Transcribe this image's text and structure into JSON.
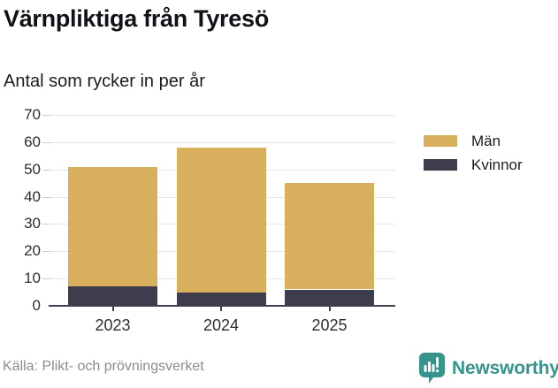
{
  "header": {
    "title": "Värnpliktiga från Tyresö",
    "subtitle": "Antal som rycker in per år"
  },
  "chart_data": {
    "type": "bar",
    "stacked": true,
    "title": "Värnpliktiga från Tyresö",
    "subtitle": "Antal som rycker in per år",
    "categories": [
      "2023",
      "2024",
      "2025"
    ],
    "series": [
      {
        "name": "Män",
        "color": "#d8af5c",
        "values": [
          44,
          53,
          39
        ]
      },
      {
        "name": "Kvinnor",
        "color": "#3e3d4d",
        "values": [
          7,
          5,
          6
        ]
      }
    ],
    "stack_totals": [
      51,
      58,
      45
    ],
    "xlabel": "",
    "ylabel": "",
    "ylim": [
      0,
      70
    ],
    "yticks": [
      0,
      10,
      20,
      30,
      40,
      50,
      60,
      70
    ],
    "grid": "horizontal",
    "legend_position": "right"
  },
  "footer": {
    "source": "Källa: Plikt- och prövningsverket",
    "brand": "Newsworthy",
    "brand_icon": "newsworthy-speech-bubble-bar-chart-icon"
  },
  "colors": {
    "men": "#d8af5c",
    "women": "#3e3d4d",
    "gridline": "#e6e6ea",
    "axis": "#3f3e4e",
    "source_text": "#8b8b8b",
    "brand_teal": "#37948c",
    "background": "#ffffff"
  }
}
